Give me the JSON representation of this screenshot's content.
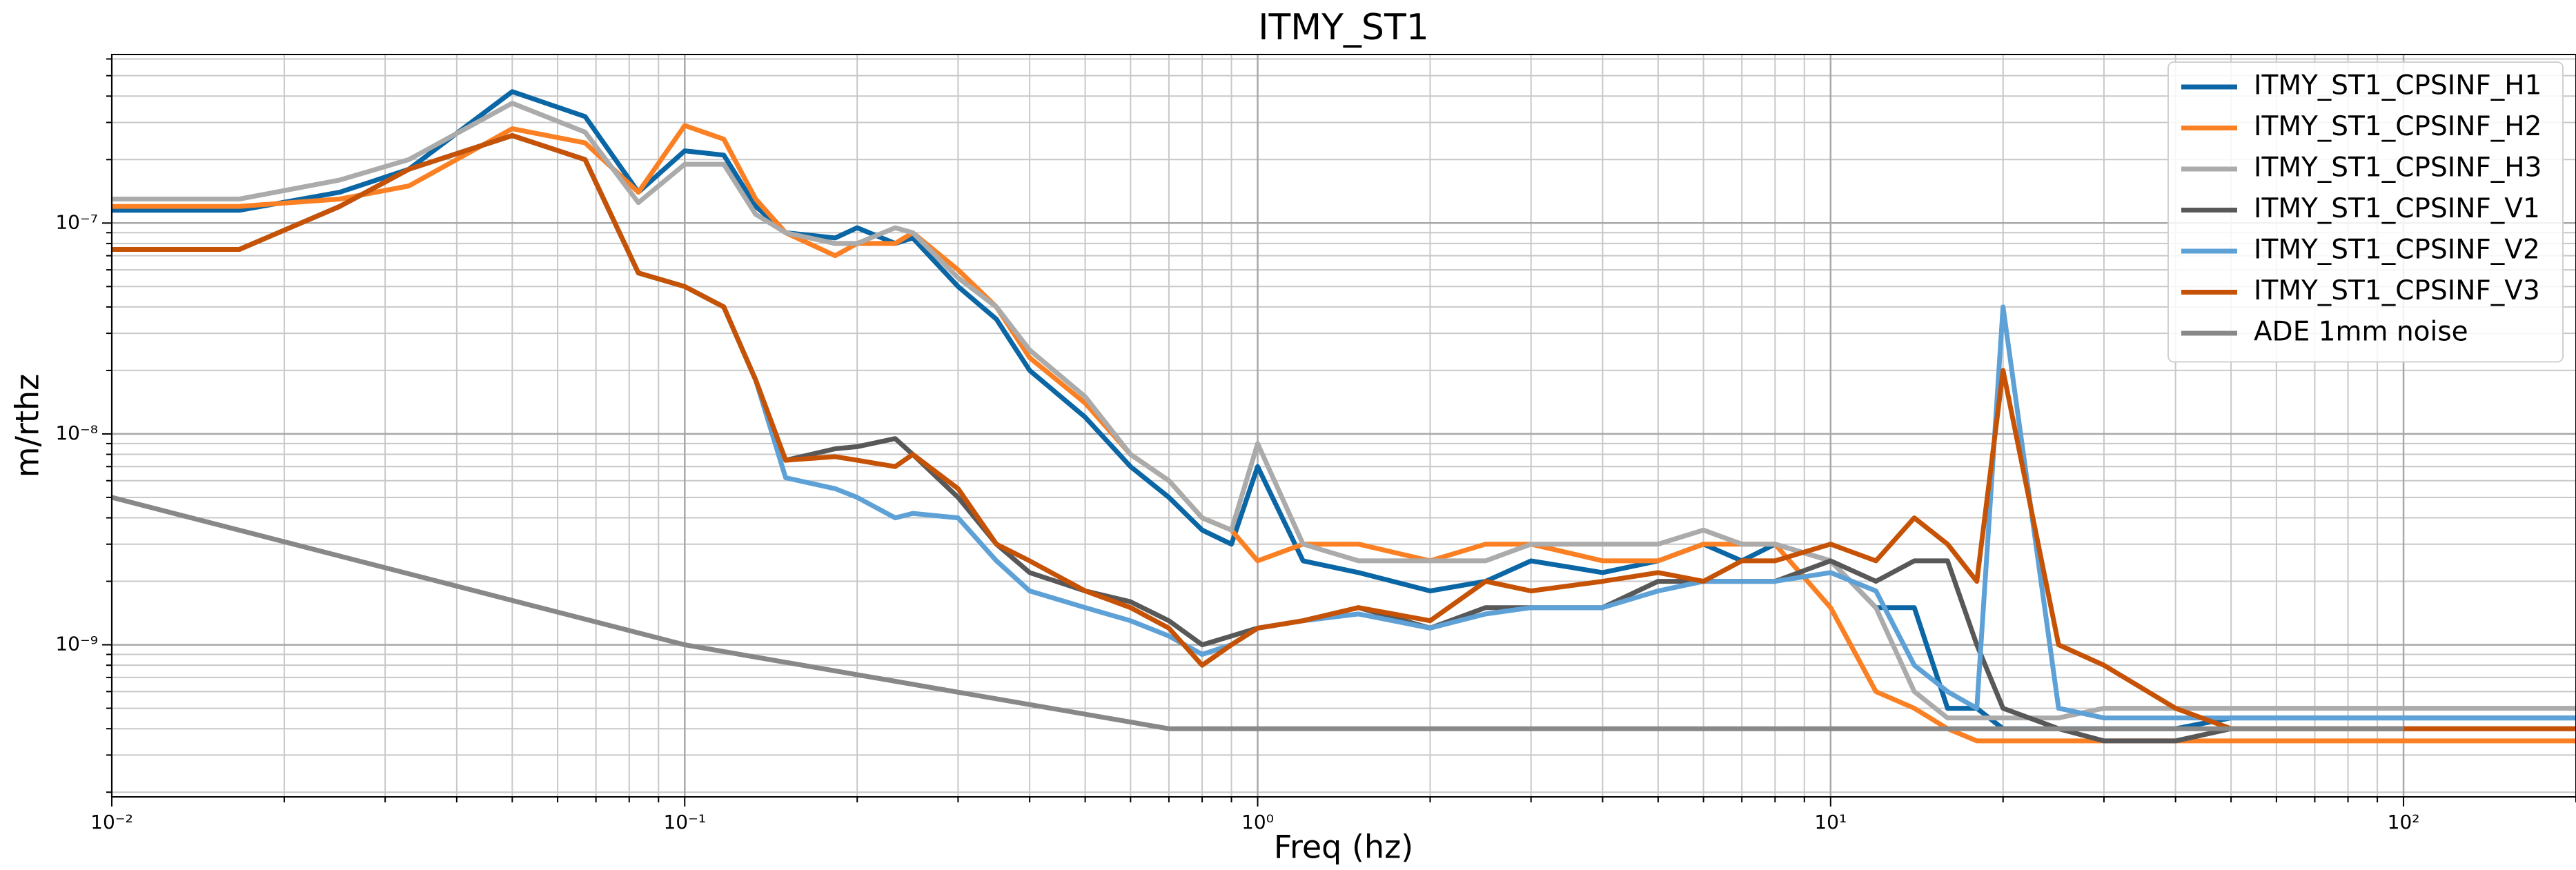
{
  "chart_data": {
    "type": "line",
    "title": "ITMY_ST1",
    "xlabel": "Freq (hz)",
    "ylabel": "m/rthz",
    "xscale": "log",
    "yscale": "log",
    "grid": true,
    "legend": "upper right",
    "xlim": [
      0.01,
      200
    ],
    "ylim": [
      1.9e-10,
      6.3e-07
    ],
    "xticks": [
      {
        "value": 0.01,
        "label": "10⁻²"
      },
      {
        "value": 0.1,
        "label": "10⁻¹"
      },
      {
        "value": 1,
        "label": "10⁰"
      },
      {
        "value": 10,
        "label": "10¹"
      },
      {
        "value": 100,
        "label": "10²"
      }
    ],
    "yticks": [
      {
        "value": 1e-09,
        "label": "10⁻⁹"
      },
      {
        "value": 1e-08,
        "label": "10⁻⁸"
      },
      {
        "value": 1e-07,
        "label": "10⁻⁷"
      }
    ],
    "xminorticks": [
      0.02,
      0.03,
      0.04,
      0.05,
      0.06,
      0.07,
      0.08,
      0.09,
      0.2,
      0.3,
      0.4,
      0.5,
      0.6,
      0.7,
      0.8,
      0.9,
      2,
      3,
      4,
      5,
      6,
      7,
      8,
      9,
      20,
      30,
      40,
      50,
      60,
      70,
      80,
      90,
      200
    ],
    "yminorticks": [
      2e-10,
      3e-10,
      4e-10,
      5e-10,
      6e-10,
      7e-10,
      8e-10,
      9e-10,
      2e-09,
      3e-09,
      4e-09,
      5e-09,
      6e-09,
      7e-09,
      8e-09,
      9e-09,
      2e-08,
      3e-08,
      4e-08,
      5e-08,
      6e-08,
      7e-08,
      8e-08,
      9e-08,
      2e-07,
      3e-07,
      4e-07,
      5e-07,
      6e-07
    ],
    "x": [
      0.01,
      0.0167,
      0.025,
      0.033,
      0.05,
      0.067,
      0.083,
      0.1,
      0.117,
      0.133,
      0.15,
      0.183,
      0.2,
      0.233,
      0.25,
      0.3,
      0.35,
      0.4,
      0.5,
      0.6,
      0.7,
      0.8,
      0.9,
      1.0,
      1.2,
      1.5,
      2,
      2.5,
      3,
      4,
      5,
      6,
      7,
      8,
      10,
      12,
      14,
      16,
      18,
      20,
      25,
      30,
      40,
      50,
      70,
      100,
      150,
      200
    ],
    "series": [
      {
        "name": "ITMY_ST1_CPSINF_H1",
        "color": "#0a66a4",
        "values": [
          1.15e-07,
          1.15e-07,
          1.4e-07,
          1.8e-07,
          4.2e-07,
          3.2e-07,
          1.4e-07,
          2.2e-07,
          2.1e-07,
          1.2e-07,
          9e-08,
          8.5e-08,
          9.5e-08,
          8e-08,
          8.5e-08,
          5e-08,
          3.5e-08,
          2e-08,
          1.2e-08,
          7e-09,
          5e-09,
          3.5e-09,
          3e-09,
          7e-09,
          2.5e-09,
          2.2e-09,
          1.8e-09,
          2e-09,
          2.5e-09,
          2.2e-09,
          2.5e-09,
          3e-09,
          2.5e-09,
          3e-09,
          2.5e-09,
          1.5e-09,
          1.5e-09,
          5e-10,
          5e-10,
          4e-10,
          4e-10,
          4e-10,
          4e-10,
          4.5e-10,
          4.5e-10,
          4.5e-10,
          4.5e-10,
          4.5e-10
        ]
      },
      {
        "name": "ITMY_ST1_CPSINF_H2",
        "color": "#fb8023",
        "values": [
          1.2e-07,
          1.2e-07,
          1.3e-07,
          1.5e-07,
          2.8e-07,
          2.4e-07,
          1.4e-07,
          2.9e-07,
          2.5e-07,
          1.3e-07,
          9e-08,
          7e-08,
          8e-08,
          8e-08,
          9e-08,
          6e-08,
          4e-08,
          2.3e-08,
          1.4e-08,
          8e-09,
          6e-09,
          4e-09,
          3.5e-09,
          2.5e-09,
          3e-09,
          3e-09,
          2.5e-09,
          3e-09,
          3e-09,
          2.5e-09,
          2.5e-09,
          3e-09,
          3e-09,
          3e-09,
          1.5e-09,
          6e-10,
          5e-10,
          4e-10,
          3.5e-10,
          3.5e-10,
          3.5e-10,
          3.5e-10,
          3.5e-10,
          3.5e-10,
          3.5e-10,
          3.5e-10,
          3.5e-10,
          3.5e-10
        ]
      },
      {
        "name": "ITMY_ST1_CPSINF_H3",
        "color": "#ababab",
        "values": [
          1.3e-07,
          1.3e-07,
          1.6e-07,
          2e-07,
          3.7e-07,
          2.7e-07,
          1.25e-07,
          1.9e-07,
          1.9e-07,
          1.1e-07,
          9e-08,
          8e-08,
          8e-08,
          9.5e-08,
          9e-08,
          5.5e-08,
          4e-08,
          2.5e-08,
          1.5e-08,
          8e-09,
          6e-09,
          4e-09,
          3.5e-09,
          9e-09,
          3e-09,
          2.5e-09,
          2.5e-09,
          2.5e-09,
          3e-09,
          3e-09,
          3e-09,
          3.5e-09,
          3e-09,
          3e-09,
          2.5e-09,
          1.5e-09,
          6e-10,
          4.5e-10,
          4.5e-10,
          4.5e-10,
          4.5e-10,
          5e-10,
          5e-10,
          5e-10,
          5e-10,
          5e-10,
          5e-10,
          5e-10
        ]
      },
      {
        "name": "ITMY_ST1_CPSINF_V1",
        "color": "#585858",
        "values": [
          7.5e-08,
          7.5e-08,
          1.2e-07,
          1.8e-07,
          2.6e-07,
          2e-07,
          5.8e-08,
          5e-08,
          4e-08,
          1.8e-08,
          7.5e-09,
          8.5e-09,
          8.7e-09,
          9.5e-09,
          8e-09,
          5e-09,
          3e-09,
          2.2e-09,
          1.8e-09,
          1.6e-09,
          1.3e-09,
          1e-09,
          1.1e-09,
          1.2e-09,
          1.3e-09,
          1.5e-09,
          1.2e-09,
          1.5e-09,
          1.5e-09,
          1.5e-09,
          2e-09,
          2e-09,
          2e-09,
          2e-09,
          2.5e-09,
          2e-09,
          2.5e-09,
          2.5e-09,
          1e-09,
          5e-10,
          4e-10,
          3.5e-10,
          3.5e-10,
          4e-10,
          4e-10,
          4e-10,
          4e-10,
          4e-10
        ]
      },
      {
        "name": "ITMY_ST1_CPSINF_V2",
        "color": "#5ea1d6",
        "values": [
          7.5e-08,
          7.5e-08,
          1.2e-07,
          1.8e-07,
          2.6e-07,
          2e-07,
          5.8e-08,
          5e-08,
          4e-08,
          1.8e-08,
          6.2e-09,
          5.5e-09,
          5e-09,
          4e-09,
          4.2e-09,
          4e-09,
          2.5e-09,
          1.8e-09,
          1.5e-09,
          1.3e-09,
          1.1e-09,
          9e-10,
          1e-09,
          1.2e-09,
          1.3e-09,
          1.4e-09,
          1.2e-09,
          1.4e-09,
          1.5e-09,
          1.5e-09,
          1.8e-09,
          2e-09,
          2e-09,
          2e-09,
          2.2e-09,
          1.8e-09,
          8e-10,
          6e-10,
          5e-10,
          4e-08,
          5e-10,
          4.5e-10,
          4.5e-10,
          4.5e-10,
          4.5e-10,
          4.5e-10,
          4.5e-10,
          4.5e-10
        ]
      },
      {
        "name": "ITMY_ST1_CPSINF_V3",
        "color": "#c65205",
        "values": [
          7.5e-08,
          7.5e-08,
          1.2e-07,
          1.8e-07,
          2.6e-07,
          2e-07,
          5.8e-08,
          5e-08,
          4e-08,
          1.8e-08,
          7.5e-09,
          7.8e-09,
          7.5e-09,
          7e-09,
          8e-09,
          5.5e-09,
          3e-09,
          2.5e-09,
          1.8e-09,
          1.5e-09,
          1.2e-09,
          8e-10,
          1e-09,
          1.2e-09,
          1.3e-09,
          1.5e-09,
          1.3e-09,
          2e-09,
          1.8e-09,
          2e-09,
          2.2e-09,
          2e-09,
          2.5e-09,
          2.5e-09,
          3e-09,
          2.5e-09,
          4e-09,
          3e-09,
          2e-09,
          2e-08,
          1e-09,
          8e-10,
          5e-10,
          4e-10,
          4e-10,
          4e-10,
          4e-10,
          4e-10
        ]
      },
      {
        "name": "ADE 1mm noise",
        "color": "#888888",
        "x": [
          0.01,
          0.1,
          0.7,
          100
        ],
        "values": [
          5e-09,
          1e-09,
          4e-10,
          4e-10
        ]
      }
    ]
  }
}
